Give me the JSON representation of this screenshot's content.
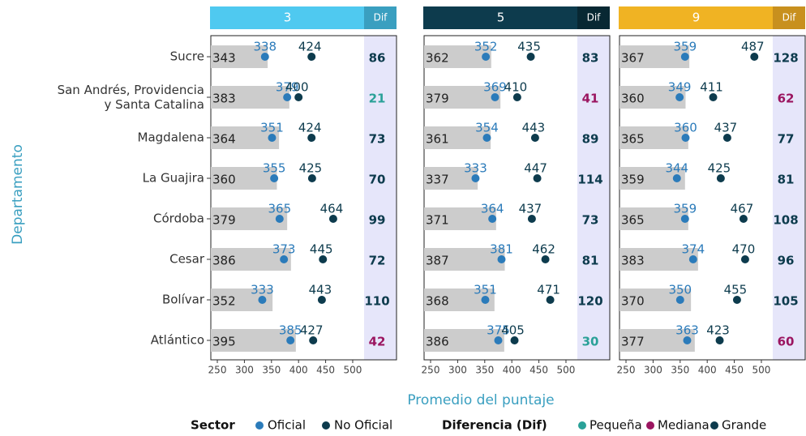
{
  "chart_data": {
    "type": "dumbbell",
    "y_label": "Departamento",
    "x_label": "Promedio del puntaje",
    "categories": [
      "Sucre",
      "San Andrés, Providencia\ny Santa Catalina",
      "Magdalena",
      "La Guajira",
      "Córdoba",
      "Cesar",
      "Bolívar",
      "Atlántico"
    ],
    "xlim": [
      238,
      521
    ],
    "xticks": [
      250,
      300,
      350,
      400,
      450,
      500
    ],
    "bar_color": "#cccccc",
    "dif_background": "#e6e6fa",
    "sector_title": "Sector",
    "series": [
      {
        "name": "Oficial",
        "color": "#2b7bba"
      },
      {
        "name": "No Oficial",
        "color": "#0d3b4d"
      }
    ],
    "dif_title": "Diferencia (Dif)",
    "dif_classes": [
      {
        "name": "Pequeña",
        "color": "#2aa198"
      },
      {
        "name": "Mediana",
        "color": "#9b1560"
      },
      {
        "name": "Grande",
        "color": "#0d3b4d"
      }
    ],
    "facets": [
      {
        "title": "3",
        "dif_label": "Dif",
        "color": "#4fc9f0",
        "dif_color": "#3a9fc0",
        "average": [
          343,
          383,
          364,
          360,
          379,
          386,
          352,
          395
        ],
        "series": [
          {
            "values": [
              338,
              379,
              351,
              355,
              365,
              373,
              333,
              385
            ]
          },
          {
            "values": [
              424,
              400,
              424,
              425,
              464,
              445,
              443,
              427
            ]
          }
        ],
        "dif": [
          86,
          21,
          73,
          70,
          99,
          72,
          110,
          42
        ],
        "dif_class": [
          "Grande",
          "Pequeña",
          "Grande",
          "Grande",
          "Grande",
          "Grande",
          "Grande",
          "Mediana"
        ]
      },
      {
        "title": "5",
        "dif_label": "Dif",
        "color": "#0d3b4d",
        "dif_color": "#082833",
        "average": [
          362,
          379,
          361,
          337,
          371,
          387,
          368,
          386
        ],
        "series": [
          {
            "values": [
              352,
              369,
              354,
              333,
              364,
              381,
              351,
              375
            ]
          },
          {
            "values": [
              435,
              410,
              443,
              447,
              437,
              462,
              471,
              405
            ]
          }
        ],
        "dif": [
          83,
          41,
          89,
          114,
          73,
          81,
          120,
          30
        ],
        "dif_class": [
          "Grande",
          "Mediana",
          "Grande",
          "Grande",
          "Grande",
          "Grande",
          "Grande",
          "Pequeña"
        ]
      },
      {
        "title": "9",
        "dif_label": "Dif",
        "color": "#f0b323",
        "dif_color": "#c8901e",
        "average": [
          367,
          360,
          365,
          359,
          365,
          383,
          370,
          377
        ],
        "series": [
          {
            "values": [
              359,
              349,
              360,
              344,
              359,
              374,
              350,
              363
            ]
          },
          {
            "values": [
              487,
              411,
              437,
              425,
              467,
              470,
              455,
              423
            ]
          }
        ],
        "dif": [
          128,
          62,
          77,
          81,
          108,
          96,
          105,
          60
        ],
        "dif_class": [
          "Grande",
          "Mediana",
          "Grande",
          "Grande",
          "Grande",
          "Grande",
          "Grande",
          "Mediana"
        ]
      }
    ]
  }
}
